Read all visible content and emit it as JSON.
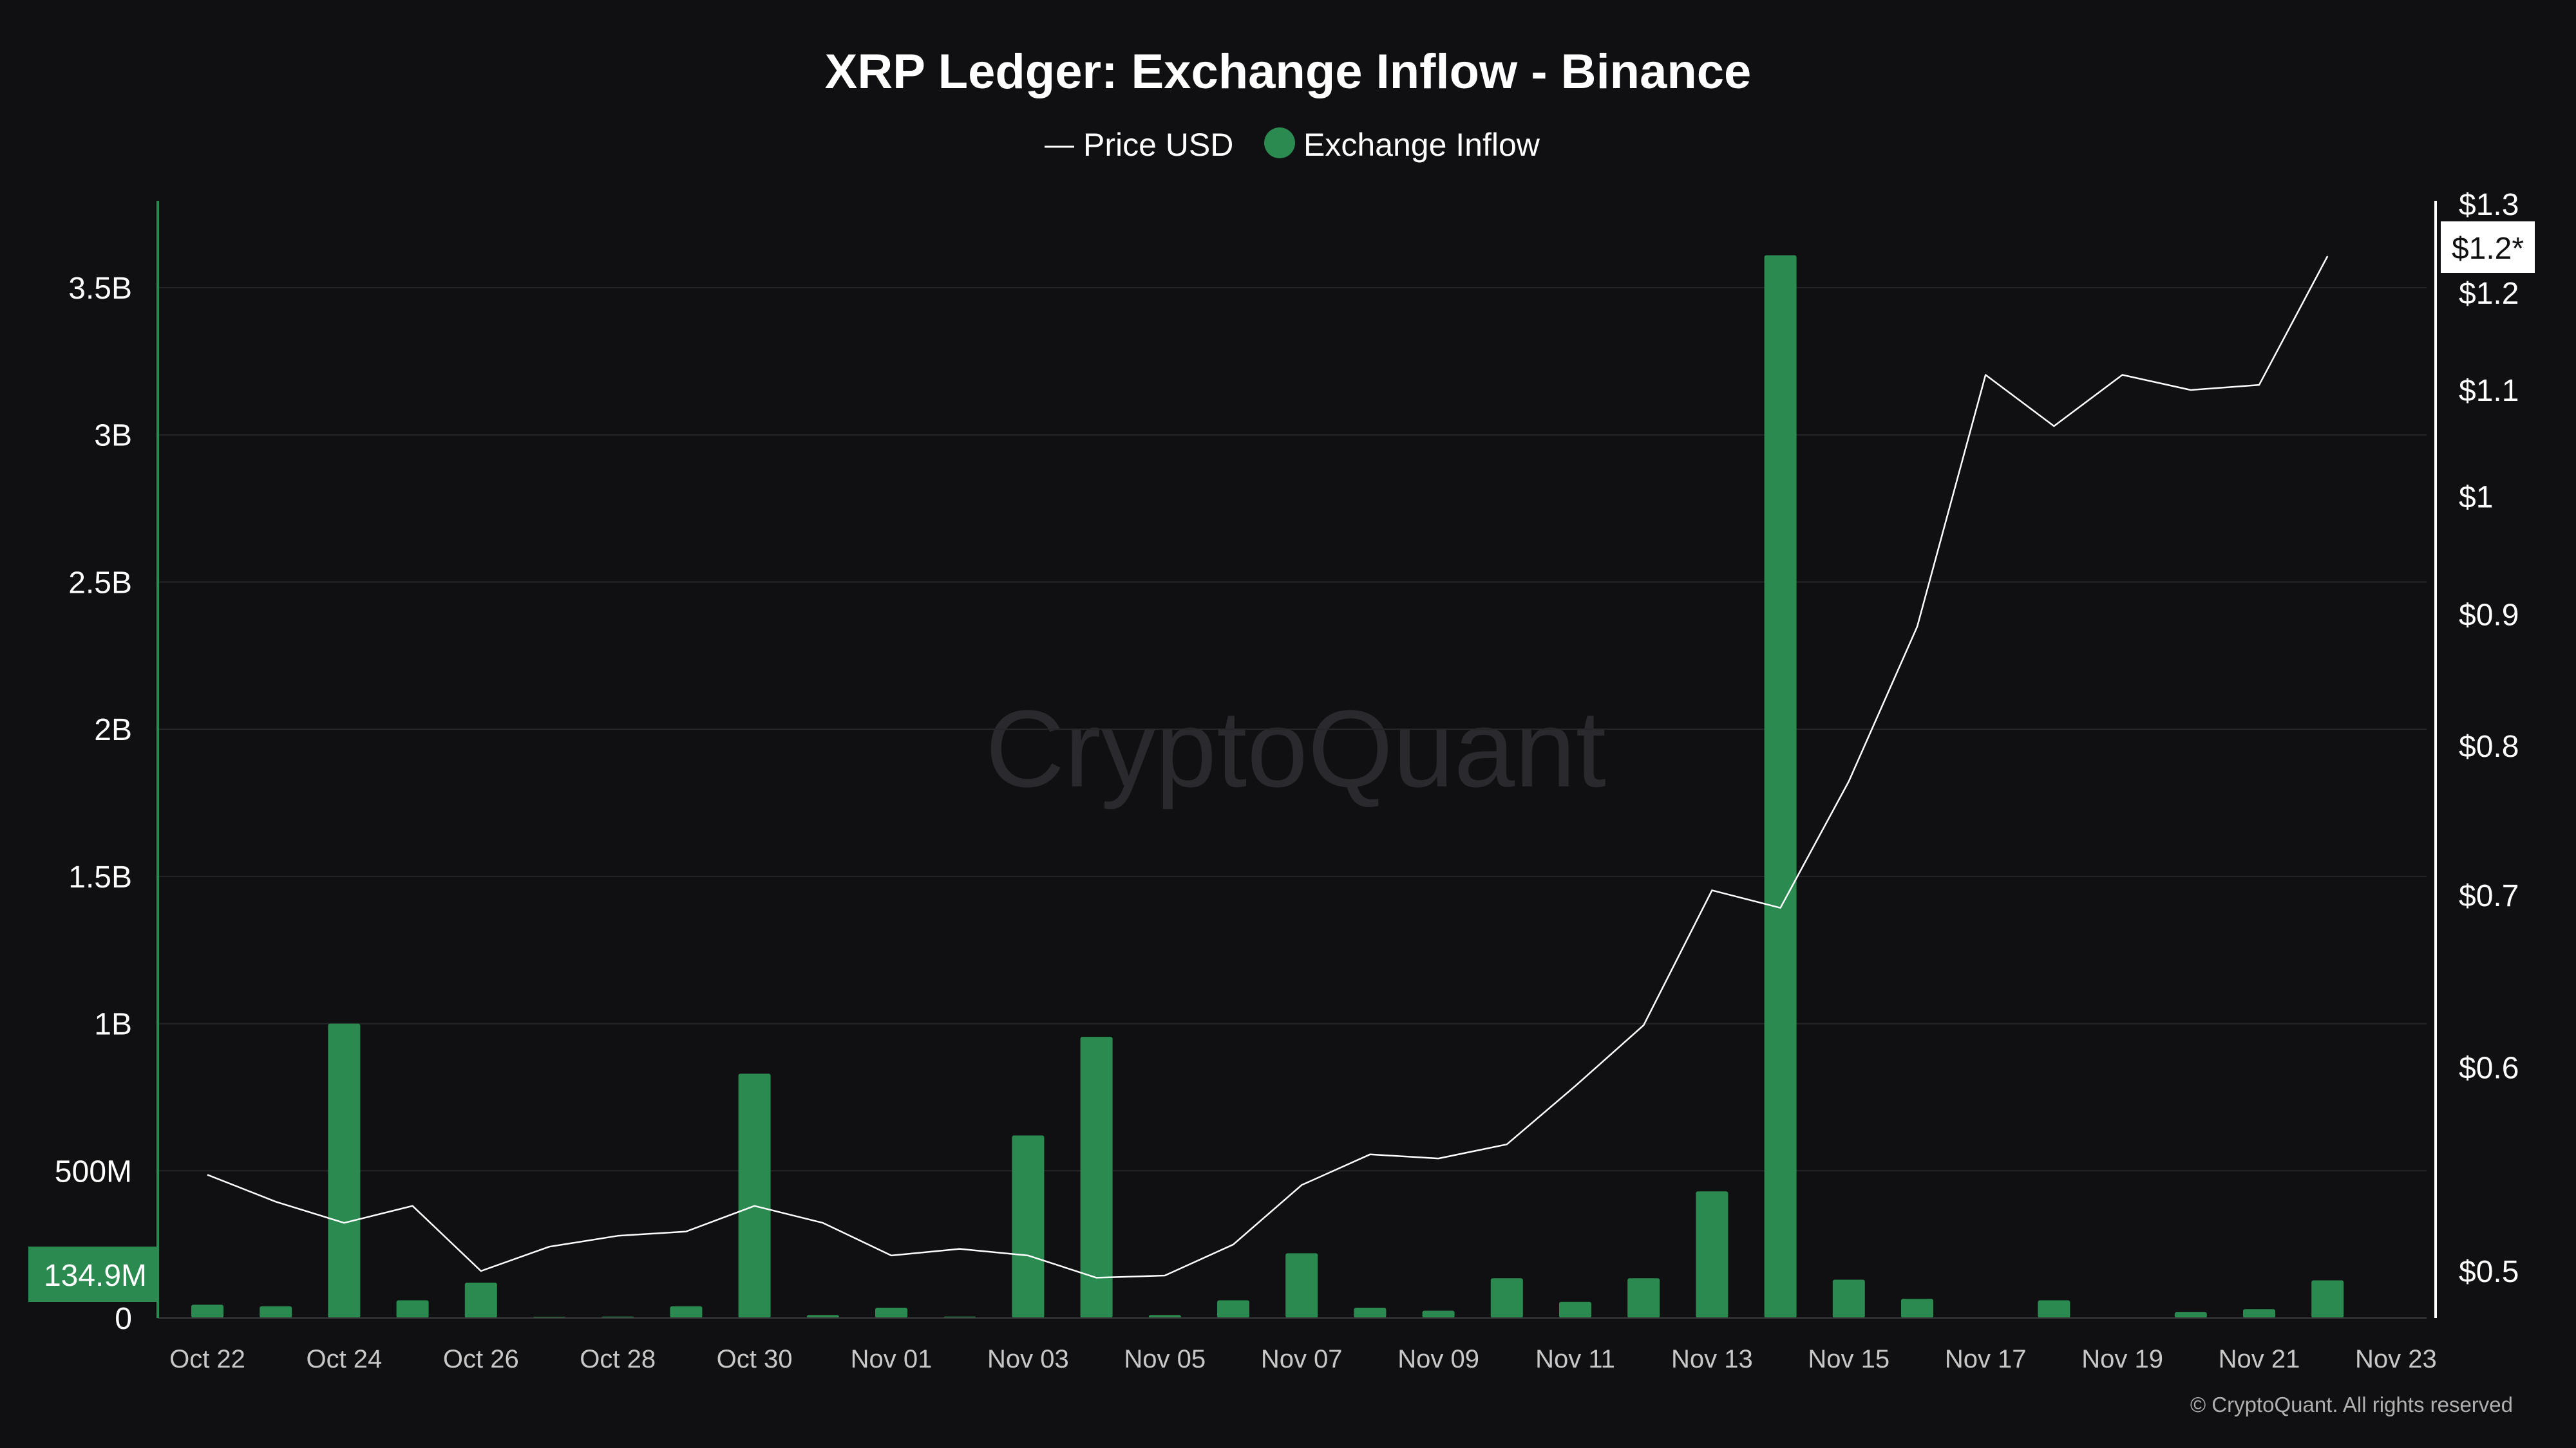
{
  "title": "XRP Ledger: Exchange Inflow - Binance",
  "legend": {
    "price_label": "Price USD",
    "inflow_label": "Exchange Inflow"
  },
  "watermark": "CryptoQuant",
  "copyright": "© CryptoQuant. All rights reserved",
  "colors": {
    "background": "#101012",
    "bar": "#2b8a4f",
    "line": "#ffffff",
    "grid": "#26262a",
    "left_axis": "#2b8a4f",
    "right_axis": "#ffffff"
  },
  "current_value_badges": {
    "inflow": "134.9M",
    "price": "$1.2*"
  },
  "chart_data": {
    "type": "bar",
    "x": [
      "Oct 22",
      "Oct 23",
      "Oct 24",
      "Oct 25",
      "Oct 26",
      "Oct 27",
      "Oct 28",
      "Oct 29",
      "Oct 30",
      "Oct 31",
      "Nov 01",
      "Nov 02",
      "Nov 03",
      "Nov 04",
      "Nov 05",
      "Nov 06",
      "Nov 07",
      "Nov 08",
      "Nov 09",
      "Nov 10",
      "Nov 11",
      "Nov 12",
      "Nov 13",
      "Nov 14",
      "Nov 15",
      "Nov 16",
      "Nov 17",
      "Nov 18",
      "Nov 19",
      "Nov 20",
      "Nov 21",
      "Nov 22",
      "Nov 23"
    ],
    "x_tick_labels": [
      "Oct 22",
      "Oct 24",
      "Oct 26",
      "Oct 28",
      "Oct 30",
      "Nov 01",
      "Nov 03",
      "Nov 05",
      "Nov 07",
      "Nov 09",
      "Nov 11",
      "Nov 13",
      "Nov 15",
      "Nov 17",
      "Nov 19",
      "Nov 21",
      "Nov 23"
    ],
    "series": [
      {
        "name": "Exchange Inflow",
        "axis": "left",
        "type": "bar",
        "values": [
          45000000,
          40000000,
          1000000000,
          60000000,
          120000000,
          3000000,
          5000000,
          40000000,
          830000000,
          10000000,
          35000000,
          5000000,
          620000000,
          955000000,
          10000000,
          60000000,
          220000000,
          35000000,
          25000000,
          135000000,
          55000000,
          135000000,
          430000000,
          3610000000,
          130000000,
          65000000,
          null,
          60000000,
          null,
          20000000,
          30000000,
          128000000,
          null
        ]
      },
      {
        "name": "Price USD",
        "axis": "right",
        "type": "line",
        "values": [
          0.545,
          0.532,
          0.522,
          0.53,
          0.5,
          0.511,
          0.516,
          0.518,
          0.53,
          0.522,
          0.507,
          0.51,
          0.507,
          0.497,
          0.498,
          0.512,
          0.54,
          0.555,
          0.553,
          0.56,
          0.59,
          0.623,
          0.703,
          0.692,
          0.775,
          0.89,
          1.115,
          1.065,
          1.115,
          1.1,
          1.105,
          1.24,
          null
        ]
      }
    ],
    "left_axis": {
      "ticks": [
        0,
        500000000,
        1000000000,
        1500000000,
        2000000000,
        2500000000,
        3000000000,
        3500000000
      ],
      "tick_labels": [
        "0",
        "500M",
        "1B",
        "1.5B",
        "2B",
        "2.5B",
        "3B",
        "3.5B"
      ],
      "ylim": [
        0,
        3800000000
      ]
    },
    "right_axis": {
      "scale": "log",
      "ticks": [
        0.5,
        0.6,
        0.7,
        0.8,
        0.9,
        1.0,
        1.1,
        1.2,
        1.3
      ],
      "tick_labels": [
        "$0.5",
        "$0.6",
        "$0.7",
        "$0.8",
        "$0.9",
        "$1",
        "$1.1",
        "$1.2",
        "$1.3"
      ],
      "ylim": [
        0.48,
        1.3
      ]
    },
    "grid": true,
    "legend_position": "top-center"
  }
}
